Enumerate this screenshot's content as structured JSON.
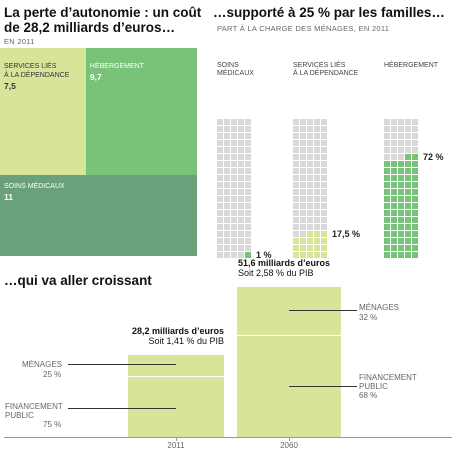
{
  "section1": {
    "title_line1": "La perte d’autonomie : un coût",
    "title_line2": "de 28,2 milliards d’euros…",
    "subtitle": "EN 2011",
    "treemap": [
      {
        "label_line1": "SERVICES LIÉS",
        "label_line2": "À LA DÉPENDANCE",
        "value": 7.5,
        "value_label": "7,5",
        "color": "#d6e59a",
        "text_color": "#333333"
      },
      {
        "label_line1": "HÉBERGEMENT",
        "label_line2": "",
        "value": 9.7,
        "value_label": "9,7",
        "color": "#78c279",
        "text_color": "#ffffff"
      },
      {
        "label_line1": "SOINS MÉDICAUX",
        "label_line2": "",
        "value": 11,
        "value_label": "11",
        "color": "#6aa17a",
        "text_color": "#ffffff"
      }
    ]
  },
  "section2": {
    "title": "…supporté à 25 % par les familles…",
    "subtitle": "PART À LA CHARGE DES MÉNAGES, EN 2011",
    "waffles": [
      {
        "label_line1": "SOINS",
        "label_line2": "MÉDICAUX",
        "value": 1,
        "value_label": "1 %",
        "fill": "#78c279"
      },
      {
        "label_line1": "SERVICES LIÉS",
        "label_line2": "À LA DÉPENDANCE",
        "value": 17.5,
        "value_label": "17,5 %",
        "fill": "#d6e59a"
      },
      {
        "label_line1": "HÉBERGEMENT",
        "label_line2": "",
        "value": 72,
        "value_label": "72 %",
        "fill": "#78c279"
      }
    ]
  },
  "section3": {
    "title": "…qui va aller croissant",
    "bars": [
      {
        "year": "2011",
        "total": 28.2,
        "total_label": "28,2 milliards d’euros",
        "pib_label": "Soit 1,41 % du PIB",
        "menages_label": "MÉNAGES",
        "menages_pct": 25,
        "menages_value": "25 %",
        "public_label_line1": "FINANCEMENT",
        "public_label_line2": "PUBLIC",
        "public_pct": 75,
        "public_value": "75 %"
      },
      {
        "year": "2060",
        "total": 51.6,
        "total_label": "51,6 milliards d’euros",
        "pib_label": "Soit 2,58 % du PIB",
        "menages_label": "MÉNAGES",
        "menages_pct": 32,
        "menages_value": "32 %",
        "public_label_line1": "FINANCEMENT",
        "public_label_line2": "PUBLIC",
        "public_pct": 68,
        "public_value": "68 %"
      }
    ],
    "bar_color": "#d6e59a"
  },
  "chart_data": [
    {
      "type": "treemap",
      "title": "La perte d’autonomie : un coût de 28,2 milliards d’euros…",
      "subtitle": "EN 2011",
      "categories": [
        "SERVICES LIÉS À LA DÉPENDANCE",
        "HÉBERGEMENT",
        "SOINS MÉDICAUX"
      ],
      "values": [
        7.5,
        9.7,
        11
      ]
    },
    {
      "type": "waffle",
      "title": "…supporté à 25 % par les familles…",
      "subtitle": "PART À LA CHARGE DES MÉNAGES, EN 2011",
      "categories": [
        "SOINS MÉDICAUX",
        "SERVICES LIÉS À LA DÉPENDANCE",
        "HÉBERGEMENT"
      ],
      "values": [
        1,
        17.5,
        72
      ]
    },
    {
      "type": "bar",
      "title": "…qui va aller croissant",
      "categories": [
        "2011",
        "2060"
      ],
      "values": [
        28.2,
        51.6
      ],
      "series": [
        {
          "name": "MÉNAGES",
          "values": [
            25,
            32
          ]
        },
        {
          "name": "FINANCEMENT PUBLIC",
          "values": [
            75,
            68
          ]
        }
      ]
    }
  ]
}
